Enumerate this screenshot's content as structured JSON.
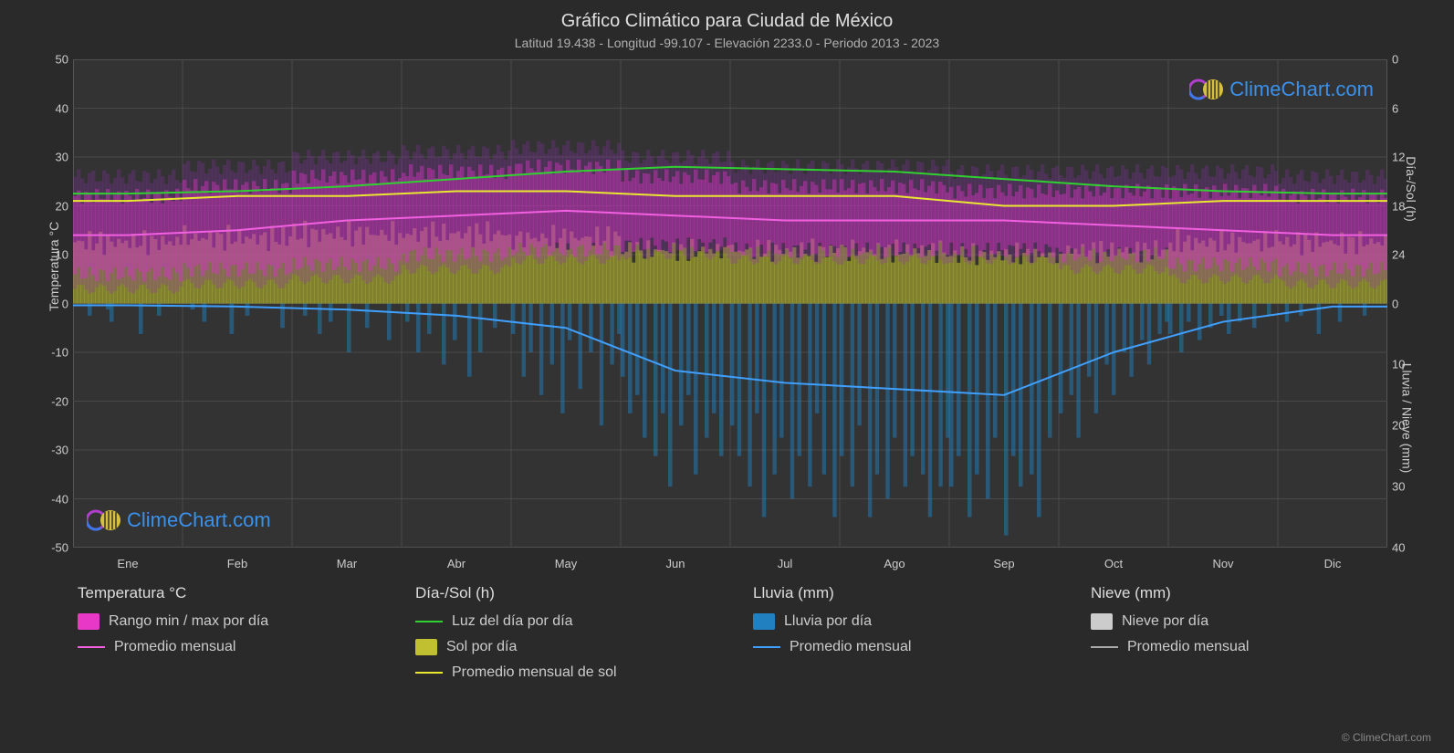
{
  "title": "Gráfico Climático para Ciudad de México",
  "subtitle": "Latitud 19.438 - Longitud -99.107 - Elevación 2233.0 - Periodo 2013 - 2023",
  "copyright": "© ClimeChart.com",
  "watermark_text": "ClimeChart.com",
  "chart": {
    "background_color": "#333333",
    "grid_color": "#4a4a4a",
    "months": [
      "Ene",
      "Feb",
      "Mar",
      "Abr",
      "May",
      "Jun",
      "Jul",
      "Ago",
      "Sep",
      "Oct",
      "Nov",
      "Dic"
    ],
    "y_left": {
      "label": "Temperatura °C",
      "min": -50,
      "max": 50,
      "step": 10
    },
    "y_right_top": {
      "label": "Día-/Sol (h)",
      "ticks": [
        {
          "pos": 50,
          "val": "0"
        },
        {
          "pos": 40,
          "val": "6"
        },
        {
          "pos": 30,
          "val": "12"
        },
        {
          "pos": 20,
          "val": "18"
        },
        {
          "pos": 10,
          "val": "24"
        }
      ]
    },
    "y_right_bottom": {
      "label": "Lluvia / Nieve (mm)",
      "ticks": [
        {
          "pos": 0,
          "val": "0"
        },
        {
          "pos": -12.5,
          "val": "10"
        },
        {
          "pos": -25,
          "val": "20"
        },
        {
          "pos": -37.5,
          "val": "30"
        },
        {
          "pos": -50,
          "val": "40"
        }
      ]
    },
    "series": {
      "temp_range": {
        "color": "#e838c8",
        "opacity": 0.45,
        "min": [
          6,
          7,
          8,
          10,
          11,
          12,
          11,
          11,
          11,
          10,
          8,
          7
        ],
        "max": [
          22,
          24,
          26,
          27,
          28,
          26,
          24,
          24,
          23,
          23,
          23,
          22
        ],
        "extreme_min": [
          3,
          4,
          5,
          7,
          9,
          10,
          9,
          9,
          9,
          7,
          5,
          4
        ],
        "extreme_max": [
          26,
          28,
          30,
          31,
          32,
          30,
          28,
          28,
          27,
          27,
          27,
          26
        ]
      },
      "temp_avg": {
        "color": "#f060e0",
        "width": 2,
        "values": [
          14,
          15,
          17,
          18,
          19,
          18,
          17,
          17,
          17,
          16,
          15,
          14
        ]
      },
      "daylight": {
        "color": "#30d030",
        "width": 2,
        "values_deg": [
          22.5,
          23,
          24,
          25.5,
          27,
          28,
          27.5,
          27,
          25.5,
          24,
          23,
          22.5
        ]
      },
      "sun_bars": {
        "color": "#c0c030",
        "opacity": 0.55,
        "values_deg": [
          13,
          14,
          15,
          15,
          14,
          11,
          11,
          11,
          10,
          11,
          13,
          13
        ]
      },
      "sun_avg": {
        "color": "#e8e830",
        "width": 2,
        "values_deg": [
          21,
          22,
          22,
          23,
          23,
          22,
          22,
          22,
          20,
          20,
          21,
          21
        ]
      },
      "rain_bars": {
        "color": "#2080c0",
        "opacity": 0.5,
        "values_mm": [
          [
            0,
            0,
            0,
            0,
            2,
            0,
            0,
            0,
            0,
            1,
            3,
            0,
            0,
            0,
            0,
            0,
            0,
            0,
            5,
            0,
            0,
            0,
            0,
            2,
            0,
            0,
            0,
            0,
            0,
            0
          ],
          [
            0,
            0,
            1,
            0,
            0,
            3,
            0,
            0,
            0,
            0,
            0,
            0,
            5,
            0,
            0,
            0,
            2,
            0,
            0,
            0,
            0,
            0,
            0,
            0,
            0,
            4,
            0,
            0
          ],
          [
            0,
            0,
            0,
            2,
            0,
            0,
            0,
            5,
            0,
            0,
            3,
            0,
            0,
            0,
            0,
            8,
            0,
            0,
            0,
            0,
            4,
            0,
            0,
            0,
            0,
            0,
            6,
            0,
            0,
            0
          ],
          [
            0,
            3,
            0,
            0,
            8,
            0,
            0,
            5,
            0,
            0,
            0,
            10,
            0,
            0,
            6,
            0,
            0,
            0,
            12,
            0,
            0,
            8,
            0,
            0,
            0,
            4,
            0,
            0,
            0,
            0
          ],
          [
            5,
            0,
            0,
            12,
            0,
            8,
            0,
            0,
            15,
            0,
            0,
            10,
            0,
            0,
            18,
            0,
            6,
            0,
            0,
            14,
            0,
            0,
            8,
            0,
            0,
            20,
            0,
            0,
            10,
            0,
            5
          ],
          [
            12,
            0,
            18,
            0,
            15,
            0,
            22,
            0,
            0,
            25,
            0,
            18,
            0,
            30,
            0,
            0,
            20,
            0,
            15,
            0,
            28,
            0,
            0,
            22,
            0,
            18,
            0,
            25,
            0,
            0
          ],
          [
            20,
            0,
            25,
            0,
            0,
            30,
            0,
            18,
            0,
            35,
            0,
            0,
            28,
            0,
            22,
            0,
            0,
            32,
            0,
            25,
            0,
            0,
            30,
            0,
            18,
            0,
            28,
            0,
            0,
            35,
            0
          ],
          [
            25,
            0,
            0,
            30,
            0,
            20,
            0,
            0,
            35,
            0,
            28,
            0,
            0,
            32,
            0,
            22,
            0,
            0,
            30,
            0,
            25,
            0,
            0,
            28,
            0,
            35,
            0,
            0,
            30,
            0,
            22
          ],
          [
            30,
            0,
            25,
            0,
            0,
            35,
            0,
            28,
            0,
            0,
            32,
            0,
            22,
            0,
            0,
            38,
            0,
            25,
            0,
            30,
            0,
            0,
            28,
            0,
            35,
            0,
            0,
            22,
            0,
            0
          ],
          [
            18,
            0,
            0,
            15,
            0,
            22,
            0,
            0,
            12,
            0,
            18,
            0,
            0,
            10,
            0,
            15,
            0,
            0,
            8,
            0,
            12,
            0,
            0,
            6,
            0,
            10,
            0,
            0,
            5,
            0,
            3
          ],
          [
            5,
            0,
            0,
            8,
            0,
            3,
            0,
            0,
            6,
            0,
            0,
            4,
            0,
            0,
            2,
            0,
            5,
            0,
            0,
            3,
            0,
            0,
            0,
            4,
            0,
            0,
            0,
            2,
            0,
            0
          ],
          [
            0,
            0,
            3,
            0,
            0,
            0,
            2,
            0,
            0,
            0,
            0,
            5,
            0,
            0,
            0,
            0,
            0,
            3,
            0,
            0,
            0,
            0,
            0,
            0,
            2,
            0,
            0,
            0,
            0,
            0,
            0
          ]
        ]
      },
      "rain_avg": {
        "color": "#40a0ff",
        "width": 2,
        "values_mm": [
          0.3,
          0.5,
          1,
          2,
          4,
          11,
          13,
          14,
          15,
          8,
          3,
          0.5
        ]
      }
    }
  },
  "legend": {
    "columns": [
      {
        "header": "Temperatura °C",
        "items": [
          {
            "type": "swatch",
            "color": "#e838c8",
            "label": "Rango min / max por día"
          },
          {
            "type": "line",
            "color": "#f060e0",
            "label": "Promedio mensual"
          }
        ]
      },
      {
        "header": "Día-/Sol (h)",
        "items": [
          {
            "type": "line",
            "color": "#30d030",
            "label": "Luz del día por día"
          },
          {
            "type": "swatch",
            "color": "#c0c030",
            "label": "Sol por día"
          },
          {
            "type": "line",
            "color": "#e8e830",
            "label": "Promedio mensual de sol"
          }
        ]
      },
      {
        "header": "Lluvia (mm)",
        "items": [
          {
            "type": "swatch",
            "color": "#2080c0",
            "label": "Lluvia por día"
          },
          {
            "type": "line",
            "color": "#40a0ff",
            "label": "Promedio mensual"
          }
        ]
      },
      {
        "header": "Nieve (mm)",
        "items": [
          {
            "type": "swatch",
            "color": "#cccccc",
            "label": "Nieve por día"
          },
          {
            "type": "line",
            "color": "#aaaaaa",
            "label": "Promedio mensual"
          }
        ]
      }
    ]
  }
}
